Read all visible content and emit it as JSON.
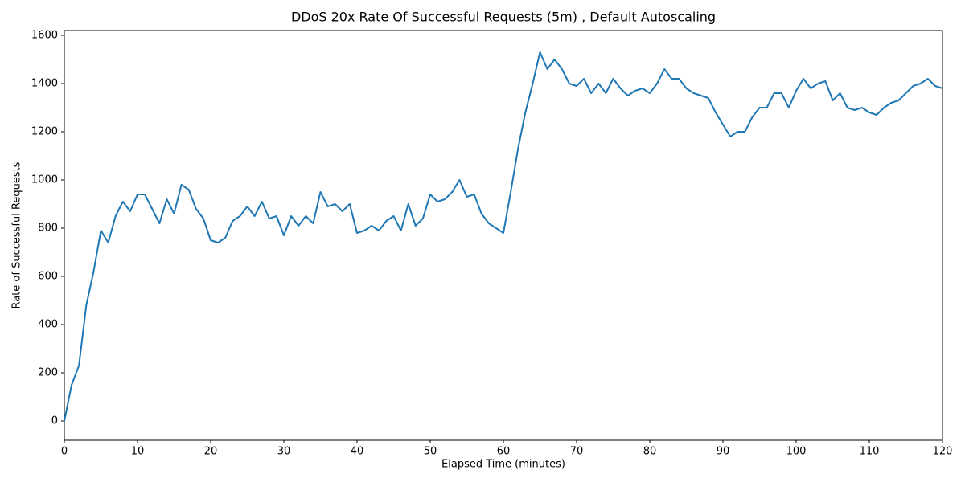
{
  "chart_data": {
    "type": "line",
    "title": "DDoS 20x Rate Of Successful Requests (5m) , Default Autoscaling",
    "x_label": "Elapsed Time (minutes)",
    "y_label": "Rate of Successful Requests",
    "x": [
      0,
      1,
      2,
      3,
      4,
      5,
      6,
      7,
      8,
      9,
      10,
      11,
      12,
      13,
      14,
      15,
      16,
      17,
      18,
      19,
      20,
      21,
      22,
      23,
      24,
      25,
      26,
      27,
      28,
      29,
      30,
      31,
      32,
      33,
      34,
      35,
      36,
      37,
      38,
      39,
      40,
      41,
      42,
      43,
      44,
      45,
      46,
      47,
      48,
      49,
      50,
      51,
      52,
      53,
      54,
      55,
      56,
      57,
      58,
      59,
      60,
      61,
      62,
      63,
      64,
      65,
      66,
      67,
      68,
      69,
      70,
      71,
      72,
      73,
      74,
      75,
      76,
      77,
      78,
      79,
      80,
      81,
      82,
      83,
      84,
      85,
      86,
      87,
      88,
      89,
      90,
      91,
      92,
      93,
      94,
      95,
      96,
      97,
      98,
      99,
      100,
      101,
      102,
      103,
      104,
      105,
      106,
      107,
      108,
      109,
      110,
      111,
      112,
      113,
      114,
      115,
      116,
      117,
      118,
      119,
      120
    ],
    "series": [
      {
        "name": "Rate of Successful Requests",
        "color": "#1f77b4",
        "values": [
          0,
          150,
          230,
          480,
          620,
          790,
          740,
          850,
          910,
          870,
          940,
          940,
          880,
          820,
          920,
          860,
          980,
          960,
          880,
          840,
          750,
          740,
          760,
          830,
          850,
          890,
          850,
          910,
          840,
          850,
          770,
          850,
          810,
          850,
          820,
          950,
          890,
          900,
          870,
          900,
          780,
          790,
          810,
          790,
          830,
          850,
          790,
          900,
          810,
          840,
          940,
          910,
          920,
          950,
          1000,
          930,
          940,
          860,
          820,
          800,
          780,
          950,
          1130,
          1280,
          1400,
          1530,
          1460,
          1500,
          1460,
          1400,
          1390,
          1420,
          1360,
          1400,
          1360,
          1420,
          1380,
          1350,
          1370,
          1380,
          1360,
          1400,
          1460,
          1420,
          1420,
          1380,
          1360,
          1350,
          1340,
          1280,
          1230,
          1180,
          1200,
          1200,
          1260,
          1300,
          1300,
          1360,
          1360,
          1300,
          1370,
          1420,
          1380,
          1400,
          1410,
          1330,
          1360,
          1300,
          1290,
          1300,
          1280,
          1270,
          1300,
          1320,
          1330,
          1360,
          1390,
          1400,
          1420,
          1390,
          1380
        ]
      }
    ],
    "xlim": [
      0,
      120
    ],
    "ylim": [
      -80,
      1620
    ],
    "xticks": [
      0,
      10,
      20,
      30,
      40,
      50,
      60,
      70,
      80,
      90,
      100,
      110,
      120
    ],
    "yticks": [
      0,
      200,
      400,
      600,
      800,
      1000,
      1200,
      1400,
      1600
    ]
  }
}
